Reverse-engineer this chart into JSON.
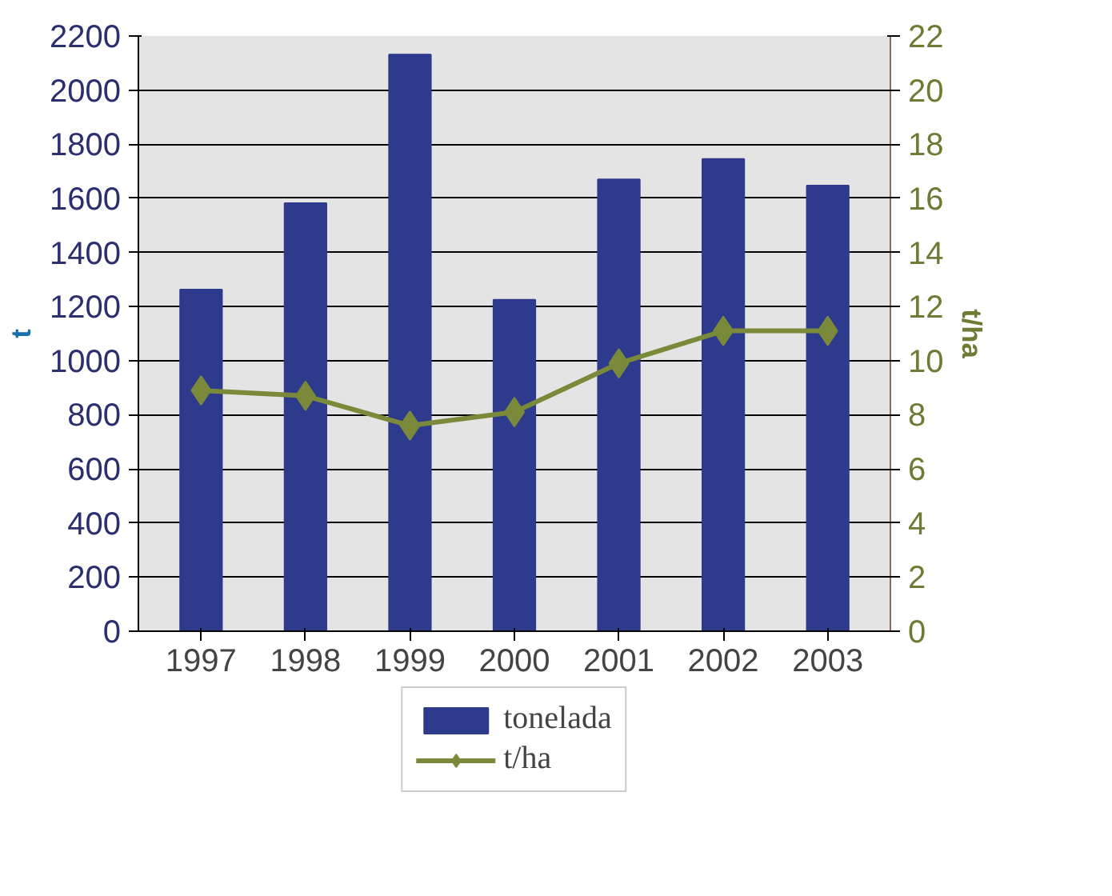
{
  "chart_data": {
    "type": "bar",
    "categories": [
      "1997",
      "1998",
      "1999",
      "2000",
      "2001",
      "2002",
      "2003"
    ],
    "ylabel": "t",
    "y2label": "t/ha",
    "series": [
      {
        "name": "tonelada",
        "color": "#2e3a8c",
        "values": [
          1263,
          1582,
          2131,
          1225,
          1670,
          1745,
          1647
        ]
      },
      {
        "name": "t/ha",
        "type": "line",
        "axis": "y2",
        "color": "#7a8a3a",
        "marker": "diamond",
        "values": [
          8.9,
          8.7,
          7.6,
          8.1,
          9.9,
          11.1,
          11.1
        ]
      }
    ],
    "ylim": [
      0,
      2200
    ],
    "yticks": [
      0,
      200,
      400,
      600,
      800,
      1000,
      1200,
      1400,
      1600,
      1800,
      2000,
      2200
    ],
    "y2lim": [
      0,
      22
    ],
    "y2ticks": [
      0,
      2,
      4,
      6,
      8,
      10,
      12,
      14,
      16,
      18,
      20,
      22
    ],
    "grid": "y",
    "legend": "bottom"
  }
}
